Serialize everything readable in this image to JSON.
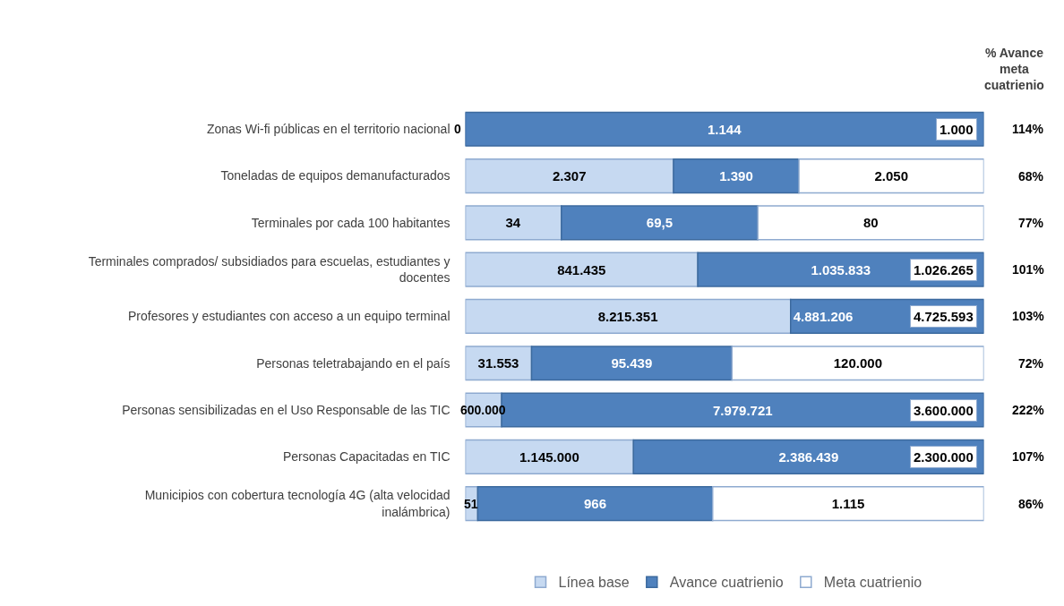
{
  "chart_data": [
    {
      "type": "bar",
      "orientation": "horizontal",
      "stacked": true,
      "legend": "bottom",
      "categories": [
        "Zonas Wi-fi públicas en el territorio nacional"
      ],
      "series": [
        {
          "name": "Línea base",
          "color": "#c6d9f1",
          "values": [
            0
          ],
          "value_labels": [
            "0"
          ]
        },
        {
          "name": "Avance cuatrienio",
          "color": "#4f81bd",
          "values": [
            1144
          ],
          "value_labels": [
            "1.144"
          ]
        },
        {
          "name": "Meta cuatrienio",
          "color": "#ffffff",
          "values": [
            null
          ],
          "value_labels": [
            null
          ]
        }
      ],
      "annotations": [
        "% Avance meta cuatrienio",
        "114%",
        "1.000"
      ]
    },
    {
      "type": "bar",
      "orientation": "horizontal",
      "stacked": true,
      "legend": "bottom",
      "categories": [
        "Toneladas de equipos demanufacturados"
      ],
      "series": [
        {
          "color": "#c6d9f1",
          "values": [
            2307
          ],
          "value_labels": [
            "2.307"
          ]
        },
        {
          "color": "#4f81bd",
          "values": [
            1390
          ],
          "value_labels": [
            "1.390"
          ]
        },
        {
          "color": "#ffffff",
          "values": [
            2050
          ],
          "value_labels": [
            "2.050"
          ]
        }
      ],
      "annotations": [
        "68%"
      ]
    },
    {
      "type": "bar",
      "orientation": "horizontal",
      "stacked": true,
      "legend": "bottom",
      "categories": [
        "Terminales por cada 100 habitantes"
      ],
      "series": [
        {
          "color": "#c6d9f1",
          "values": [
            34
          ],
          "value_labels": [
            "34"
          ]
        },
        {
          "color": "#4f81bd",
          "values": [
            69.5
          ],
          "value_labels": [
            "69,5"
          ]
        },
        {
          "color": "#ffffff",
          "values": [
            80
          ],
          "value_labels": [
            "80"
          ]
        }
      ],
      "annotations": [
        "77%"
      ]
    },
    {
      "type": "bar",
      "orientation": "horizontal",
      "stacked": true,
      "legend": "bottom",
      "categories": [
        "Terminales comprados/ subsidiados para escuelas, estudiantes y docentes"
      ],
      "series": [
        {
          "color": "#c6d9f1",
          "values": [
            841435
          ],
          "value_labels": [
            "841.435"
          ]
        },
        {
          "color": "#4f81bd",
          "values": [
            1035833
          ],
          "value_labels": [
            "1.035.833"
          ]
        },
        {
          "color": "#ffffff",
          "values": [
            null
          ],
          "value_labels": [
            null
          ]
        }
      ],
      "annotations": [
        "101%",
        "1.026.265"
      ]
    },
    {
      "type": "bar",
      "orientation": "horizontal",
      "stacked": true,
      "legend": "bottom",
      "categories": [
        "Profesores y estudiantes con acceso a un equipo terminal"
      ],
      "series": [
        {
          "color": "#c6d9f1",
          "values": [
            8215351
          ],
          "value_labels": [
            "8.215.351"
          ]
        },
        {
          "color": "#4f81bd",
          "values": [
            4881206
          ],
          "value_labels": [
            "4.881.206"
          ]
        },
        {
          "color": "#ffffff",
          "values": [
            null
          ],
          "value_labels": [
            null
          ]
        }
      ],
      "annotations": [
        "103%",
        "4.725.593"
      ]
    },
    {
      "type": "bar",
      "orientation": "horizontal",
      "stacked": true,
      "legend": "bottom",
      "categories": [
        "Personas teletrabajando en el país"
      ],
      "series": [
        {
          "color": "#c6d9f1",
          "values": [
            31553
          ],
          "value_labels": [
            "31.553"
          ]
        },
        {
          "color": "#4f81bd",
          "values": [
            95439
          ],
          "value_labels": [
            "95.439"
          ]
        },
        {
          "color": "#ffffff",
          "values": [
            120000
          ],
          "value_labels": [
            "120.000"
          ]
        }
      ],
      "annotations": [
        "72%"
      ]
    },
    {
      "type": "bar",
      "orientation": "horizontal",
      "stacked": true,
      "legend": "bottom",
      "categories": [
        "Personas sensibilizadas en el Uso Responsable de las TIC"
      ],
      "series": [
        {
          "color": "#c6d9f1",
          "values": [
            600000
          ],
          "value_labels": [
            "600.000"
          ]
        },
        {
          "color": "#4f81bd",
          "values": [
            7979721
          ],
          "value_labels": [
            "7.979.721"
          ]
        },
        {
          "color": "#ffffff",
          "values": [
            null
          ],
          "value_labels": [
            null
          ]
        }
      ],
      "annotations": [
        "222%",
        "3.600.000"
      ]
    },
    {
      "type": "bar",
      "orientation": "horizontal",
      "stacked": true,
      "legend": "bottom",
      "categories": [
        "Personas Capacitadas en TIC"
      ],
      "series": [
        {
          "color": "#c6d9f1",
          "values": [
            1145000
          ],
          "value_labels": [
            "1.145.000"
          ]
        },
        {
          "color": "#4f81bd",
          "values": [
            2386439
          ],
          "value_labels": [
            "2.386.439"
          ]
        },
        {
          "color": "#ffffff",
          "values": [
            null
          ],
          "value_labels": [
            null
          ]
        }
      ],
      "annotations": [
        "107%",
        "2.300.000"
      ]
    },
    {
      "type": "bar",
      "orientation": "horizontal",
      "stacked": true,
      "legend": "bottom",
      "categories": [
        "Municipios con cobertura tecnología 4G (alta velocidad inalámbrica)"
      ],
      "series": [
        {
          "color": "#c6d9f1",
          "values": [
            51
          ],
          "value_labels": [
            "51"
          ]
        },
        {
          "color": "#4f81bd",
          "values": [
            966
          ],
          "value_labels": [
            "966"
          ]
        },
        {
          "color": "#ffffff",
          "values": [
            1115
          ],
          "value_labels": [
            "1.115"
          ]
        }
      ],
      "annotations": [
        "86%"
      ]
    }
  ]
}
